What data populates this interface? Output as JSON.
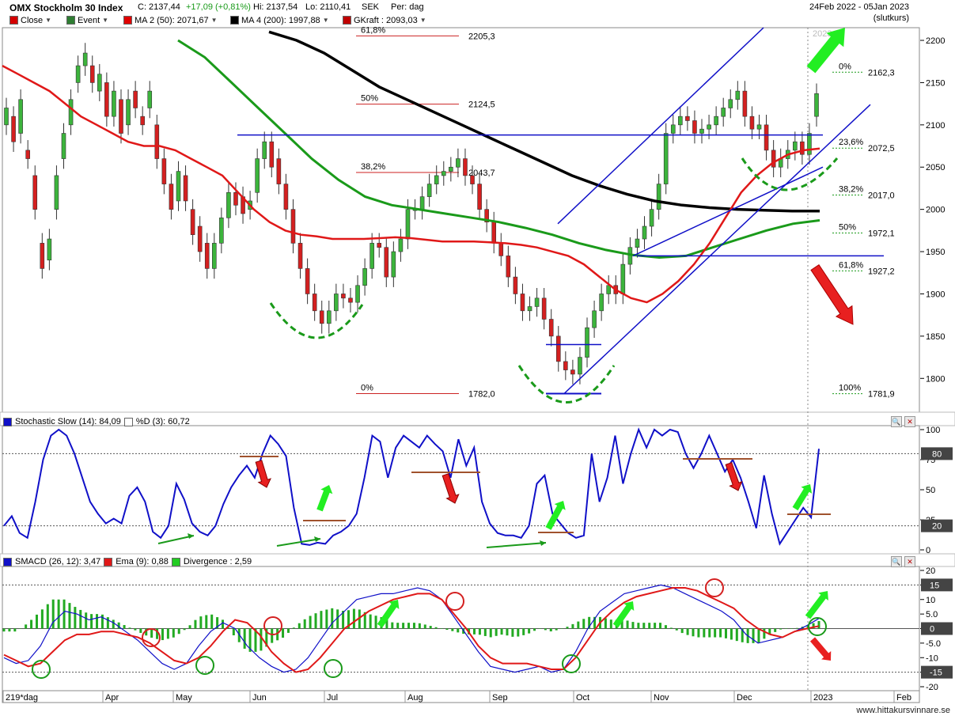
{
  "header": {
    "title": "OMX Stockholm 30 Index",
    "close": "C: 2137,44",
    "change": "+17,09 (+0,81%)",
    "hi": "Hi: 2137,54",
    "lo": "Lo: 2110,41",
    "currency": "SEK",
    "period": "Per: dag",
    "date_range": "24Feb 2022 - 05Jan 2023",
    "slutkurs": "(slutkurs)"
  },
  "legend": [
    {
      "label": "Close",
      "color": "#d40000"
    },
    {
      "label": "Event",
      "color": "#2e7d32"
    },
    {
      "label": "MA 2 (50): 2071,67",
      "color": "#e00000"
    },
    {
      "label": "MA 4 (200): 1997,88",
      "color": "#000000"
    },
    {
      "label": "GKraft : 2093,03",
      "color": "#c00000"
    }
  ],
  "colors": {
    "up": "#3cb43c",
    "down": "#d42020",
    "ma50": "#e01818",
    "ma200": "#000000",
    "green_ma": "#1a9a1a",
    "blue": "#1010c8",
    "arrow_green": "#22ee22",
    "arrow_red": "#e82020"
  },
  "chart_data": [
    {
      "type": "candlestick",
      "title": "OMX Stockholm 30 Index",
      "ylim": [
        1760,
        2215
      ],
      "y_ticks": [
        1800,
        1850,
        1900,
        1950,
        2000,
        2050,
        2100,
        2150,
        2200
      ],
      "x_ticks": [
        "219*dag",
        "Apr",
        "May",
        "Jun",
        "Jul",
        "Aug",
        "Sep",
        "Oct",
        "Nov",
        "Dec",
        "2023",
        "Feb"
      ],
      "candles_close": [
        2120,
        2080,
        2130,
        2060,
        2000,
        1930,
        1965,
        2040,
        2090,
        2130,
        2170,
        2185,
        2150,
        2160,
        2110,
        2140,
        2090,
        2130,
        2120,
        2100,
        2140,
        2060,
        2030,
        2000,
        2045,
        2010,
        1970,
        1950,
        1930,
        1960,
        1990,
        2020,
        2005,
        1995,
        2010,
        2060,
        2080,
        2050,
        2030,
        2000,
        1960,
        1930,
        1900,
        1880,
        1865,
        1880,
        1900,
        1895,
        1890,
        1910,
        1930,
        1960,
        1955,
        1920,
        1950,
        1965,
        2000,
        2000,
        2015,
        2030,
        2040,
        2045,
        2050,
        2060,
        2040,
        2030,
        2000,
        1985,
        1960,
        1945,
        1920,
        1900,
        1880,
        1885,
        1895,
        1870,
        1850,
        1820,
        1810,
        1805,
        1825,
        1860,
        1880,
        1900,
        1910,
        1900,
        1935,
        1955,
        1965,
        1980,
        2000,
        2030,
        2090,
        2100,
        2110,
        2105,
        2090,
        2095,
        2100,
        2110,
        2120,
        2130,
        2140,
        2110,
        2095,
        2100,
        2070,
        2050,
        2060,
        2070,
        2080,
        2065,
        2090,
        2137
      ],
      "candles_open": [
        2100,
        2110,
        2090,
        2070,
        2040,
        1960,
        1940,
        2000,
        2060,
        2100,
        2150,
        2170,
        2170,
        2140,
        2150,
        2110,
        2130,
        2100,
        2140,
        2110,
        2120,
        2100,
        2060,
        2030,
        2010,
        2040,
        2000,
        1980,
        1960,
        1930,
        1960,
        1990,
        2020,
        2015,
        2000,
        2020,
        2060,
        2080,
        2060,
        2030,
        2000,
        1960,
        1930,
        1900,
        1880,
        1865,
        1880,
        1900,
        1895,
        1890,
        1910,
        1930,
        1960,
        1955,
        1920,
        1950,
        1965,
        2000,
        2000,
        2015,
        2030,
        2040,
        2045,
        2050,
        2060,
        2040,
        2030,
        2000,
        1985,
        1960,
        1945,
        1920,
        1900,
        1880,
        1885,
        1895,
        1870,
        1850,
        1820,
        1810,
        1805,
        1825,
        1860,
        1880,
        1900,
        1910,
        1900,
        1935,
        1955,
        1965,
        1980,
        2000,
        2030,
        2090,
        2100,
        2110,
        2105,
        2090,
        2095,
        2100,
        2110,
        2120,
        2130,
        2140,
        2110,
        2095,
        2100,
        2070,
        2050,
        2060,
        2070,
        2080,
        2065,
        2110
      ],
      "ma50": [
        2170,
        2160,
        2150,
        2140,
        2125,
        2110,
        2100,
        2090,
        2080,
        2075,
        2075,
        2070,
        2060,
        2050,
        2040,
        2020,
        2000,
        1985,
        1975,
        1970,
        1968,
        1965,
        1965,
        1965,
        1966,
        1967,
        1966,
        1964,
        1962,
        1962,
        1962,
        1961,
        1960,
        1958,
        1955,
        1950,
        1945,
        1935,
        1920,
        1905,
        1895,
        1890,
        1900,
        1915,
        1935,
        1960,
        1990,
        2020,
        2040,
        2055,
        2065,
        2070,
        2072
      ],
      "ma200": [
        2210,
        2200,
        2185,
        2165,
        2145,
        2130,
        2115,
        2100,
        2085,
        2070,
        2055,
        2040,
        2028,
        2018,
        2010,
        2005,
        2002,
        2000,
        1999,
        1998,
        1998
      ],
      "green_ma": [
        2200,
        2180,
        2150,
        2120,
        2090,
        2060,
        2035,
        2015,
        2005,
        2000,
        1995,
        1990,
        1985,
        1978,
        1970,
        1960,
        1952,
        1946,
        1943,
        1945,
        1955,
        1965,
        1975,
        1983,
        1987
      ],
      "fib_left": [
        {
          "pct": "61,8%",
          "value": "2205,3"
        },
        {
          "pct": "50%",
          "value": "2124,5"
        },
        {
          "pct": "38,2%",
          "value": "2043,7"
        },
        {
          "pct": "0%",
          "value": "1782,0"
        }
      ],
      "fib_right": [
        {
          "pct": "0%",
          "value": "2162,3"
        },
        {
          "pct": "23,6%",
          "value": "2072,5"
        },
        {
          "pct": "38,2%",
          "value": "2017,0"
        },
        {
          "pct": "50%",
          "value": "1972,1"
        },
        {
          "pct": "61,8%",
          "value": "1927,2"
        },
        {
          "pct": "100%",
          "value": "1781,9"
        }
      ],
      "top_cut_label": "2023"
    },
    {
      "type": "line",
      "title": "Stochastic Slow (14): 84,09",
      "series": [
        {
          "name": "Stochastic Slow (14): 84,09",
          "color": "#1010c8",
          "values": [
            20,
            28,
            14,
            10,
            40,
            75,
            95,
            100,
            95,
            80,
            60,
            40,
            30,
            22,
            26,
            22,
            45,
            52,
            40,
            15,
            10,
            20,
            55,
            42,
            22,
            15,
            12,
            20,
            38,
            52,
            62,
            70,
            60,
            80,
            95,
            88,
            78,
            35,
            5,
            4,
            6,
            5,
            12,
            15,
            20,
            30,
            60,
            95,
            90,
            60,
            85,
            95,
            90,
            85,
            95,
            88,
            82,
            60,
            92,
            70,
            85,
            40,
            22,
            14,
            12,
            12,
            10,
            20,
            55,
            62,
            30,
            22,
            14,
            10,
            12,
            80,
            40,
            60,
            95,
            55,
            80,
            100,
            85,
            100,
            95,
            100,
            98,
            80,
            68,
            80,
            95,
            80,
            65,
            75,
            60,
            40,
            18,
            62,
            30,
            5,
            15,
            25,
            35,
            27,
            84
          ]
        },
        {
          "name": "%D (3): 60,72",
          "color": "#aaaaaa",
          "values": []
        }
      ],
      "ylim": [
        0,
        100
      ],
      "y_ticks": [
        0,
        25,
        50,
        75,
        100
      ],
      "levels": [
        "80",
        "20"
      ]
    },
    {
      "type": "bar",
      "title": "SMACD (26, 12): 3,47",
      "series": [
        {
          "name": "SMACD (26, 12): 3,47",
          "color": "#1010c8",
          "values": [
            -10,
            -12,
            -11,
            -6,
            2,
            6,
            5,
            3,
            4,
            2,
            -1,
            -4,
            -8,
            -12,
            -14,
            -12,
            -6,
            -1,
            2,
            0,
            -6,
            -10,
            -13,
            -15,
            -14,
            -10,
            -4,
            2,
            6,
            10,
            11,
            12,
            12,
            13,
            14,
            13,
            10,
            4,
            -2,
            -8,
            -13,
            -14,
            -15,
            -14,
            -13,
            -15,
            -14,
            -8,
            0,
            6,
            9,
            12,
            13,
            14,
            15,
            14,
            12,
            10,
            8,
            6,
            3,
            -2,
            -5,
            -4,
            -3,
            -1,
            1,
            3.47
          ]
        },
        {
          "name": "Ema (9): 0,88",
          "color": "#e01818",
          "values": [
            -9,
            -11,
            -13,
            -12,
            -8,
            -4,
            -2,
            -2,
            -1,
            -1,
            -2,
            -3,
            -5,
            -8,
            -11,
            -12,
            -10,
            -6,
            -1,
            3,
            2,
            -2,
            -8,
            -12,
            -15,
            -14,
            -10,
            -5,
            0,
            3,
            6,
            8,
            10,
            11,
            12,
            12,
            10,
            5,
            0,
            -6,
            -10,
            -12,
            -12,
            -12,
            -13,
            -14,
            -14,
            -10,
            -4,
            2,
            6,
            9,
            11,
            12,
            13,
            14,
            14,
            13,
            11,
            9,
            7,
            3,
            0,
            -2,
            -3,
            -1,
            0,
            0.88
          ]
        },
        {
          "name": "Divergence : 2,59",
          "color": "#22cc22",
          "values": []
        }
      ],
      "ylim": [
        -20,
        20
      ],
      "y_ticks": [
        "20",
        "15",
        "10",
        "5.0",
        "0",
        "-5.0",
        "-10",
        "-15",
        "-20"
      ],
      "levels": [
        "15",
        "0",
        "-15"
      ]
    }
  ],
  "pane2_header": {
    "title": "Stochastic Slow (14): 84,09",
    "d": "%D (3): 60,72"
  },
  "pane3_header": {
    "title": "SMACD (26, 12): 3,47",
    "ema": "Ema (9): 0,88",
    "div": "Divergence : 2,59"
  },
  "watermark": "www.hittakursvinnare.se"
}
